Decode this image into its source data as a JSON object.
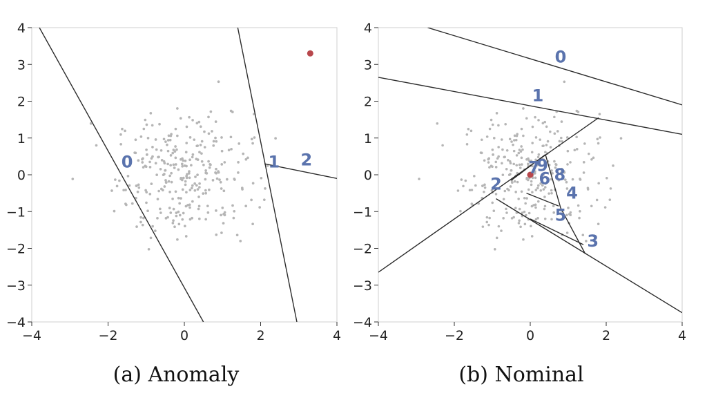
{
  "colors": {
    "point": "#b5b5b5",
    "anomaly": "#b8474c",
    "cut": "#2b2b2b",
    "region_label": "#5a73ad",
    "frame": "#cfcfcf"
  },
  "chart_data": [
    {
      "type": "scatter",
      "caption": "(a) Anomaly",
      "xlim": [
        -4,
        4
      ],
      "ylim": [
        -4,
        4
      ],
      "xticks": [
        "−4",
        "−2",
        "0",
        "2",
        "4"
      ],
      "yticks": [
        "4",
        "3",
        "2",
        "1",
        "0",
        "−1",
        "−2",
        "−3",
        "−4"
      ],
      "xtick_values": [
        -4,
        -2,
        0,
        2,
        4
      ],
      "ytick_values": [
        4,
        3,
        2,
        1,
        0,
        -1,
        -2,
        -3,
        -4
      ],
      "anomaly_point": [
        3.3,
        3.3
      ],
      "cuts": [
        [
          [
            -3.8,
            4.0
          ],
          [
            0.5,
            -4.0
          ]
        ],
        [
          [
            1.4,
            4.0
          ],
          [
            2.95,
            -4.0
          ]
        ],
        [
          [
            2.1,
            0.3
          ],
          [
            4.0,
            -0.1
          ]
        ]
      ],
      "region_labels": [
        {
          "text": "0",
          "x": -1.5,
          "y": 0.2
        },
        {
          "text": "1",
          "x": 2.35,
          "y": 0.2
        },
        {
          "text": "2",
          "x": 3.2,
          "y": 0.25
        }
      ]
    },
    {
      "type": "scatter",
      "caption": "(b) Nominal",
      "xlim": [
        -4,
        4
      ],
      "ylim": [
        -4,
        4
      ],
      "xticks": [
        "−4",
        "−2",
        "0",
        "2",
        "4"
      ],
      "yticks": [
        "4",
        "3",
        "2",
        "1",
        "0",
        "−1",
        "−2",
        "−3",
        "−4"
      ],
      "xtick_values": [
        -4,
        -2,
        0,
        2,
        4
      ],
      "ytick_values": [
        4,
        3,
        2,
        1,
        0,
        -1,
        -2,
        -3,
        -4
      ],
      "anomaly_point": [
        0.0,
        0.0
      ],
      "cuts": [
        [
          [
            -2.7,
            4.0
          ],
          [
            4.0,
            1.9
          ]
        ],
        [
          [
            -4.0,
            2.65
          ],
          [
            4.0,
            1.1
          ]
        ],
        [
          [
            -4.0,
            -2.65
          ],
          [
            1.8,
            1.55
          ]
        ],
        [
          [
            -0.9,
            -0.65
          ],
          [
            4.0,
            -3.75
          ]
        ],
        [
          [
            -0.5,
            -0.15
          ],
          [
            0.4,
            0.55
          ]
        ],
        [
          [
            0.4,
            0.55
          ],
          [
            0.8,
            -0.9
          ]
        ],
        [
          [
            0.8,
            -0.9
          ],
          [
            1.45,
            -2.15
          ]
        ],
        [
          [
            0.0,
            -1.2
          ],
          [
            1.4,
            -1.9
          ]
        ],
        [
          [
            -0.1,
            -0.5
          ],
          [
            0.75,
            -0.85
          ]
        ],
        [
          [
            -0.3,
            0.0
          ],
          [
            0.0,
            0.25
          ]
        ]
      ],
      "region_labels": [
        {
          "text": "0",
          "x": 0.8,
          "y": 3.05
        },
        {
          "text": "1",
          "x": 0.2,
          "y": 2.0
        },
        {
          "text": "2",
          "x": -0.9,
          "y": -0.4
        },
        {
          "text": "3",
          "x": 1.65,
          "y": -1.95
        },
        {
          "text": "4",
          "x": 1.1,
          "y": -0.65
        },
        {
          "text": "5",
          "x": 0.8,
          "y": -1.25
        },
        {
          "text": "6",
          "x": 0.38,
          "y": -0.25
        },
        {
          "text": "7",
          "x": 0.1,
          "y": 0.05
        },
        {
          "text": "8",
          "x": 0.78,
          "y": -0.15
        },
        {
          "text": "9",
          "x": 0.32,
          "y": 0.1
        }
      ]
    }
  ]
}
